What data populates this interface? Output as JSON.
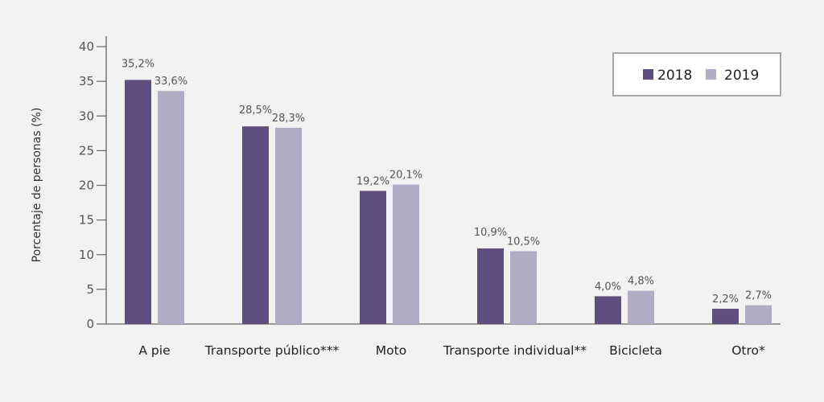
{
  "chart_data": {
    "type": "bar",
    "title": "",
    "xlabel": "",
    "ylabel": "Porcentaje de personas (%)",
    "ylim": [
      0,
      40
    ],
    "yticks": [
      0,
      5,
      10,
      15,
      20,
      25,
      30,
      35,
      40
    ],
    "grid": false,
    "legend_position": "top-right",
    "categories": [
      "A pie",
      "Transporte público***",
      "Moto",
      "Transporte individual**",
      "Bicicleta",
      "Otro*"
    ],
    "series": [
      {
        "name": "2018",
        "color": "#5f4f80",
        "values": [
          35.2,
          28.5,
          19.2,
          10.9,
          4.0,
          2.2
        ],
        "labels": [
          "35,2%",
          "28,5%",
          "19,2%",
          "10,9%",
          "4,0%",
          "2,2%"
        ]
      },
      {
        "name": "2019",
        "color": "#b2abc4",
        "values": [
          33.6,
          28.3,
          20.1,
          10.5,
          4.8,
          2.7
        ],
        "labels": [
          "33,6%",
          "28,3%",
          "20,1%",
          "10,5%",
          "4,8%",
          "2,7%"
        ]
      }
    ]
  }
}
